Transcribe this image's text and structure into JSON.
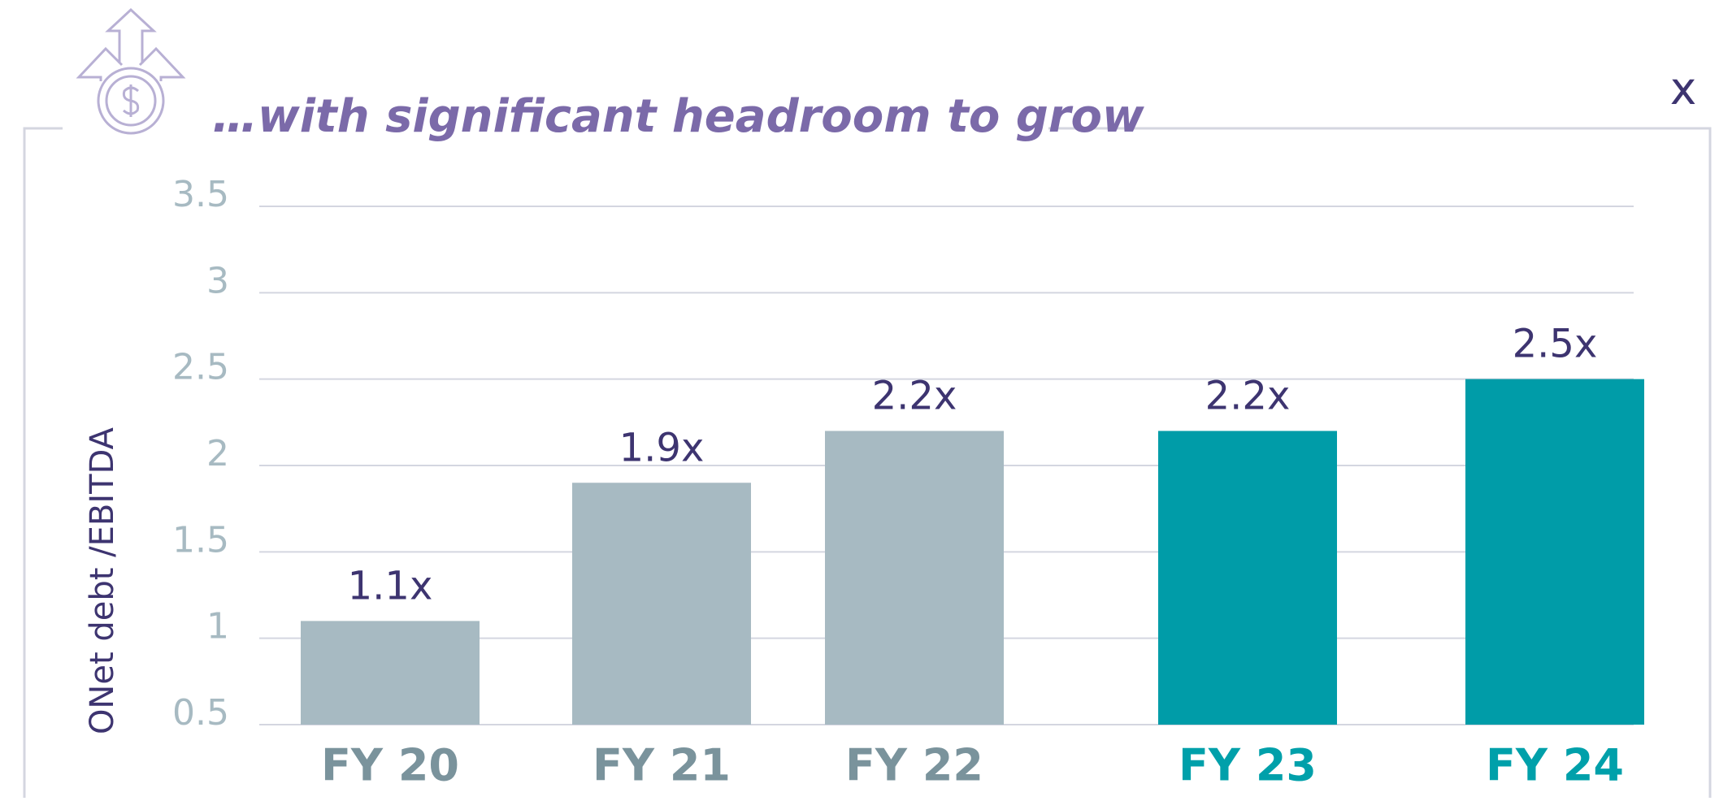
{
  "chart_data": {
    "type": "bar",
    "title": "…with significant headroom to grow",
    "y_label": "ONet debt /EBITDA",
    "close_label": "x",
    "categories": [
      "FY 20",
      "FY 21",
      "FY 22",
      "FY 23",
      "FY 24"
    ],
    "values": [
      1.1,
      1.9,
      2.2,
      2.2,
      2.5
    ],
    "value_labels": [
      "1.1x",
      "1.9x",
      "2.2x",
      "2.2x",
      "2.5x"
    ],
    "colors": [
      "#a7bac2",
      "#a7bac2",
      "#a7bac2",
      "#009ca8",
      "#009ca8"
    ],
    "category_colors": [
      "#7a939c",
      "#7a939c",
      "#7a939c",
      "#00a0aa",
      "#00a0aa"
    ],
    "ylim": [
      0.5,
      3.5
    ],
    "yticks": [
      0.5,
      1,
      1.5,
      2,
      2.5,
      3,
      3.5
    ],
    "grid": true
  }
}
